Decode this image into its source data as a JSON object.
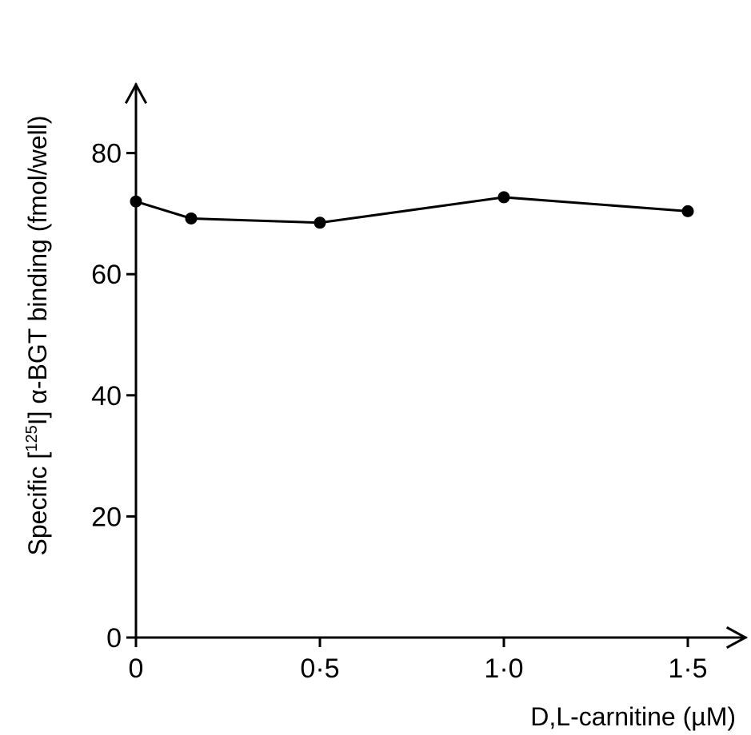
{
  "chart_data": {
    "type": "line",
    "x_label": "D,L-carnitine (µM)",
    "y_label": "Specific [125I] α-BGT binding (fmol/well)",
    "y_label_parts": {
      "pre": "Specific [",
      "sup": "125",
      "post": "I] α-BGT binding (fmol/well)"
    },
    "x_ticks": [
      "0",
      "0·5",
      "1·0",
      "1·5"
    ],
    "x_tick_values": [
      0,
      0.5,
      1.0,
      1.5
    ],
    "y_ticks": [
      "0",
      "20",
      "40",
      "60",
      "80"
    ],
    "y_tick_values": [
      0,
      20,
      40,
      60,
      80
    ],
    "xlim": [
      0,
      1.75
    ],
    "ylim": [
      0,
      92
    ],
    "grid": false,
    "legend": "none",
    "series": [
      {
        "x": [
          0,
          0.15,
          0.5,
          1.0,
          1.5
        ],
        "y": [
          72,
          69.2,
          68.5,
          72.7,
          70.4
        ]
      }
    ]
  }
}
